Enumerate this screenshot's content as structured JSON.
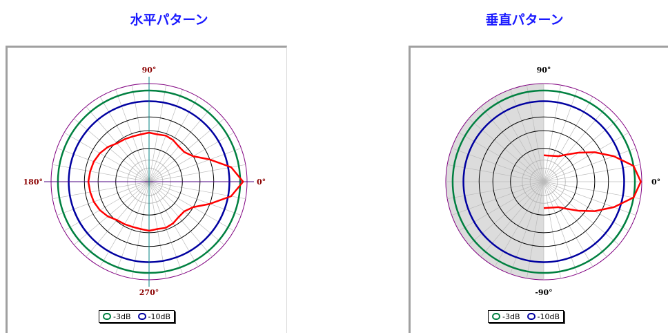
{
  "titles": {
    "horizontal": "水平パターン",
    "vertical": "垂直パターン"
  },
  "chart_data": [
    {
      "type": "polar",
      "title": "水平パターン",
      "angle_labels": {
        "right": "0°",
        "top": "90°",
        "left": "180°",
        "bottom": "270°"
      },
      "angle_label_color": "#8b0000",
      "reference_rings": [
        {
          "name": "-3dB",
          "color": "#008040"
        },
        {
          "name": "-10dB",
          "color": "#0000a0"
        }
      ],
      "series": [
        {
          "color": "#ff0000",
          "angles_deg": [
            0,
            10,
            20,
            30,
            40,
            50,
            60,
            70,
            80,
            90,
            100,
            110,
            120,
            130,
            140,
            150,
            160,
            170,
            180,
            190,
            200,
            210,
            220,
            230,
            240,
            250,
            260,
            270,
            280,
            290,
            300,
            310,
            320,
            330,
            340,
            350
          ],
          "radius_fraction": [
            0.96,
            0.85,
            0.66,
            0.52,
            0.47,
            0.47,
            0.49,
            0.5,
            0.49,
            0.5,
            0.49,
            0.49,
            0.5,
            0.51,
            0.55,
            0.58,
            0.6,
            0.61,
            0.62,
            0.61,
            0.6,
            0.58,
            0.55,
            0.51,
            0.5,
            0.49,
            0.49,
            0.5,
            0.49,
            0.5,
            0.49,
            0.47,
            0.47,
            0.52,
            0.66,
            0.85
          ]
        }
      ],
      "legend": [
        "-3dB",
        "-10dB"
      ],
      "shaded_half": false
    },
    {
      "type": "polar",
      "title": "垂直パターン",
      "angle_labels": {
        "right": "0°",
        "top": "90°",
        "bottom": "-90°"
      },
      "angle_label_color": "#000000",
      "reference_rings": [
        {
          "name": "-3dB",
          "color": "#008040"
        },
        {
          "name": "-10dB",
          "color": "#0000a0"
        }
      ],
      "series": [
        {
          "color": "#ff0000",
          "angles_deg": [
            -90,
            -80,
            -70,
            -60,
            -50,
            -40,
            -30,
            -20,
            -10,
            0,
            10,
            20,
            30,
            40,
            50,
            60,
            70,
            80,
            90
          ],
          "radius_fraction": [
            0.27,
            0.27,
            0.28,
            0.3,
            0.36,
            0.46,
            0.6,
            0.76,
            0.93,
            0.99,
            0.93,
            0.76,
            0.6,
            0.46,
            0.36,
            0.3,
            0.28,
            0.27,
            0.27
          ]
        }
      ],
      "legend": [
        "-3dB",
        "-10dB"
      ],
      "shaded_half": true
    }
  ]
}
